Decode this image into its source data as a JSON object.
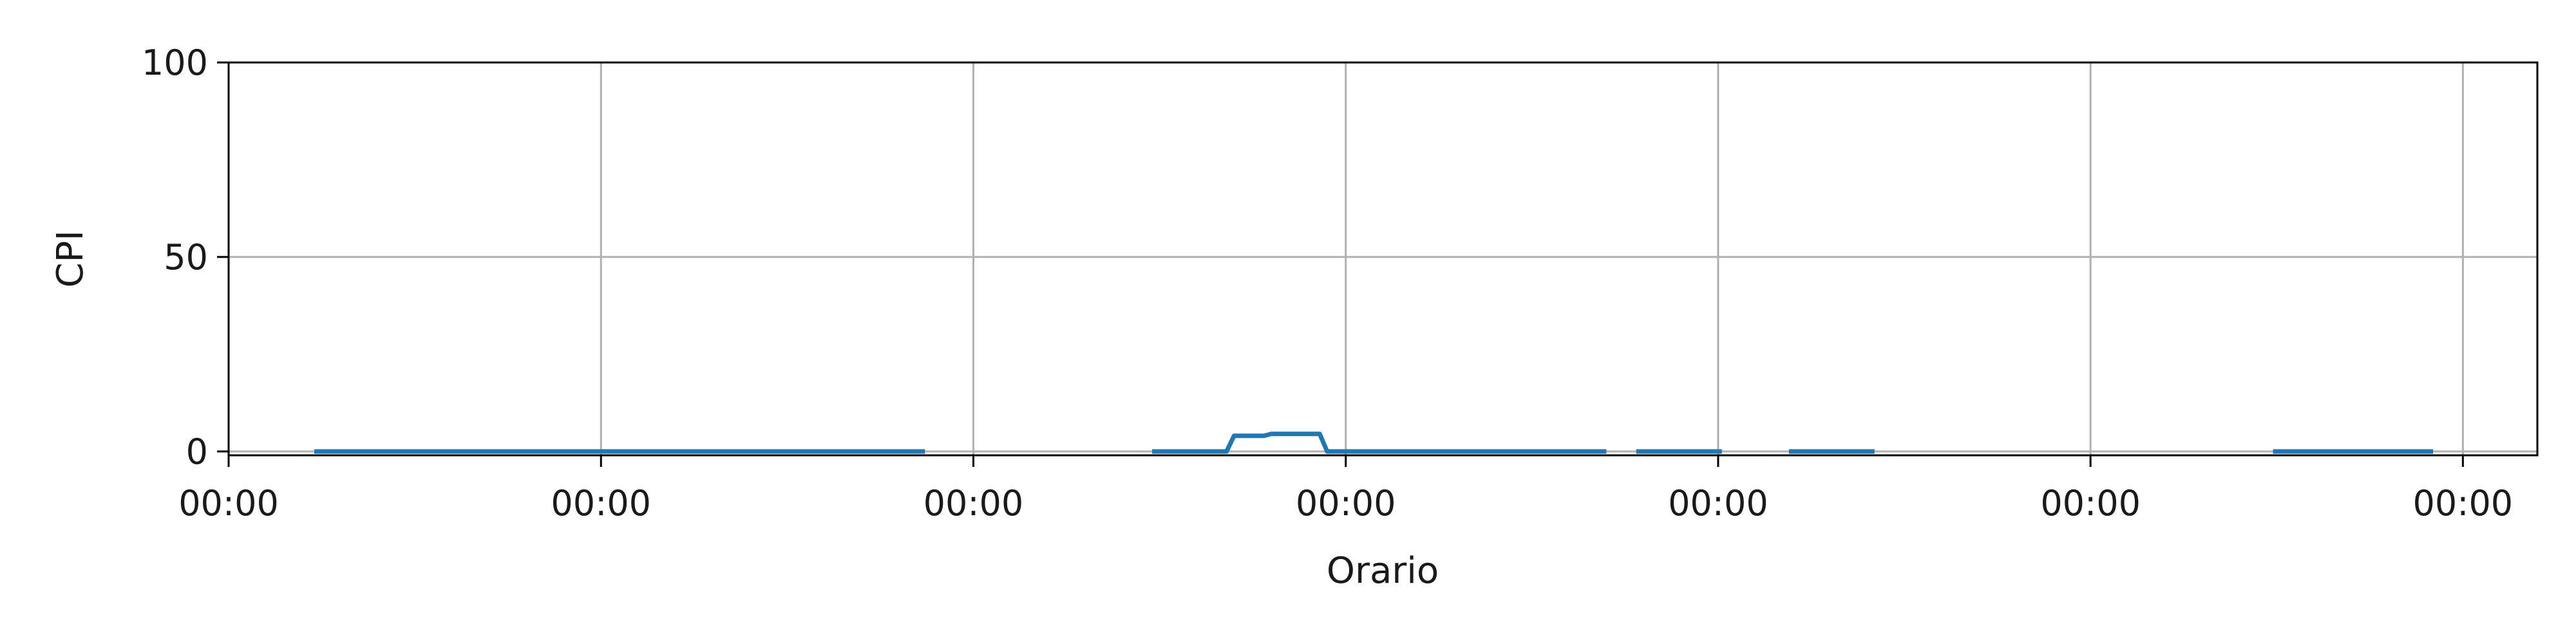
{
  "chart_data": {
    "type": "line",
    "title": "",
    "xlabel": "Orario",
    "ylabel": "CPI",
    "x_ticks": [
      "00:00",
      "00:00",
      "00:00",
      "00:00",
      "00:00",
      "00:00",
      "00:00"
    ],
    "y_ticks": [
      0,
      50,
      100
    ],
    "xlim": [
      0,
      6.2
    ],
    "ylim": [
      -1,
      100
    ],
    "grid": true,
    "colors": {
      "series": "#1f77b4",
      "grid": "#b0b0b0",
      "axis": "#000000"
    },
    "series": [
      {
        "segments": [
          [
            [
              0.23,
              0
            ],
            [
              1.87,
              0
            ]
          ],
          [
            [
              2.48,
              0
            ],
            [
              2.68,
              0
            ],
            [
              2.7,
              4
            ],
            [
              2.78,
              4
            ],
            [
              2.8,
              4.5
            ],
            [
              2.93,
              4.5
            ],
            [
              2.95,
              0
            ],
            [
              3.7,
              0
            ]
          ],
          [
            [
              3.78,
              0
            ],
            [
              4.01,
              0
            ]
          ],
          [
            [
              4.19,
              0
            ],
            [
              4.42,
              0
            ]
          ],
          [
            [
              5.49,
              0
            ],
            [
              5.92,
              0
            ]
          ]
        ]
      }
    ]
  }
}
